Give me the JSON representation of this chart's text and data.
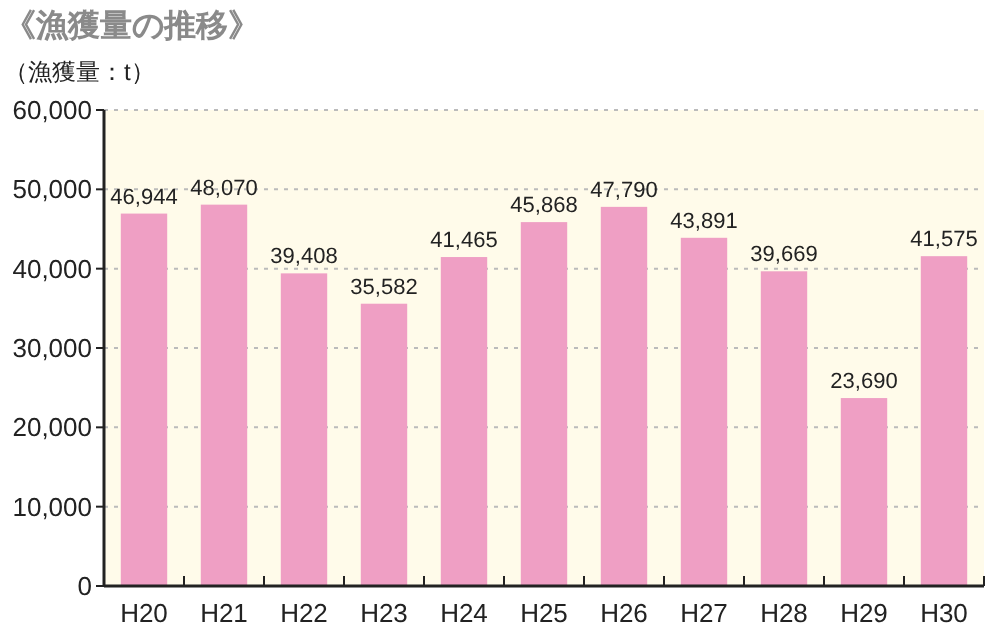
{
  "chart_data": {
    "type": "bar",
    "title": "《漁獲量の推移》",
    "ylabel": "（漁獲量：t）",
    "categories": [
      "H20",
      "H21",
      "H22",
      "H23",
      "H24",
      "H25",
      "H26",
      "H27",
      "H28",
      "H29",
      "H30"
    ],
    "values": [
      46944,
      48070,
      39408,
      35582,
      41465,
      45868,
      47790,
      43891,
      39669,
      23690,
      41575
    ],
    "color": "#ef9fc4",
    "grid": "y",
    "value_labels": [
      "46,944",
      "48,070",
      "39,408",
      "35,582",
      "41,465",
      "45,868",
      "47,790",
      "43,891",
      "39,669",
      "23,690",
      "41,575"
    ],
    "ylim": [
      0,
      60000
    ],
    "yticks": [
      {
        "value": 0,
        "label": "0"
      },
      {
        "value": 10000,
        "label": "10,000"
      },
      {
        "value": 20000,
        "label": "20,000"
      },
      {
        "value": 30000,
        "label": "30,000"
      },
      {
        "value": 40000,
        "label": "40,000"
      },
      {
        "value": 50000,
        "label": "50,000"
      },
      {
        "value": 60000,
        "label": "60,000"
      }
    ]
  }
}
